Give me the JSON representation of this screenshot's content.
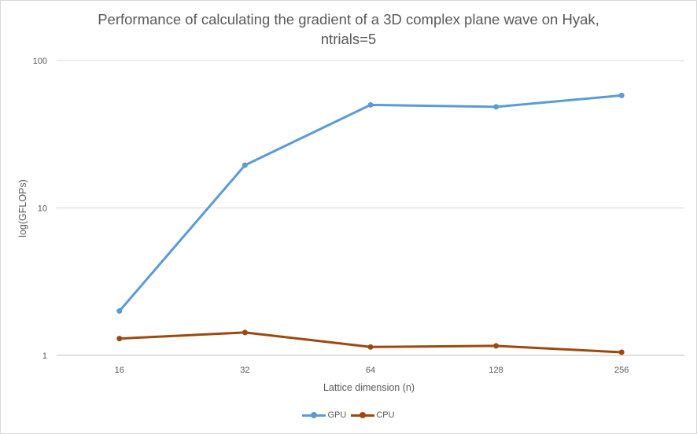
{
  "chart_data": {
    "type": "line",
    "title": [
      "Performance of calculating the gradient of a 3D complex plane wave on Hyak,",
      "ntrials=5"
    ],
    "xlabel": "Lattice dimension (n)",
    "ylabel": "log(GFLOPs)",
    "y_scale": "log",
    "ylim": [
      1,
      100
    ],
    "y_ticks": [
      "1",
      "10",
      "100"
    ],
    "categories": [
      "16",
      "32",
      "64",
      "128",
      "256"
    ],
    "grid": true,
    "legend_position": "bottom",
    "series": [
      {
        "name": "GPU",
        "color": "#5b9bd5",
        "values": [
          2.0,
          19.5,
          50,
          48.5,
          58
        ]
      },
      {
        "name": "CPU",
        "color": "#9e480e",
        "values": [
          1.3,
          1.43,
          1.14,
          1.16,
          1.05
        ]
      }
    ]
  }
}
